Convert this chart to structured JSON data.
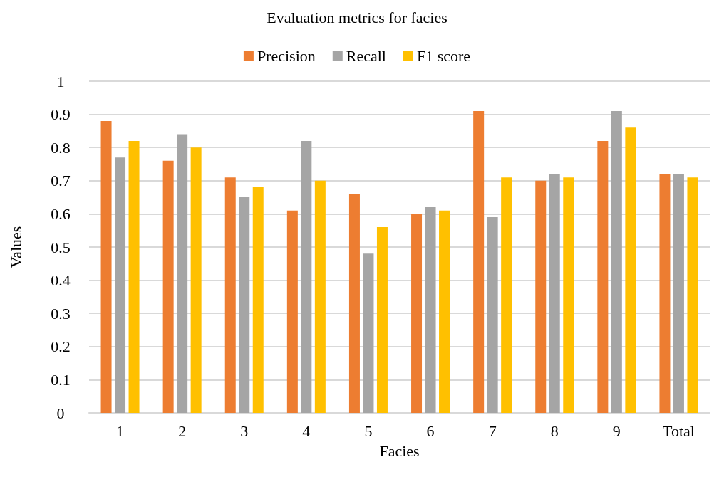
{
  "chart_data": {
    "type": "bar",
    "title": "Evaluation metrics for facies",
    "xlabel": "Facies",
    "ylabel": "Values",
    "categories": [
      "1",
      "2",
      "3",
      "4",
      "5",
      "6",
      "7",
      "8",
      "9",
      "Total"
    ],
    "series": [
      {
        "name": "Precision",
        "color": "#ed7d31",
        "values": [
          0.88,
          0.76,
          0.71,
          0.61,
          0.66,
          0.6,
          0.91,
          0.7,
          0.82,
          0.72
        ]
      },
      {
        "name": "Recall",
        "color": "#a5a5a5",
        "values": [
          0.77,
          0.84,
          0.65,
          0.82,
          0.48,
          0.62,
          0.59,
          0.72,
          0.91,
          0.72
        ]
      },
      {
        "name": "F1 score",
        "color": "#ffc000",
        "values": [
          0.82,
          0.8,
          0.68,
          0.7,
          0.56,
          0.61,
          0.71,
          0.71,
          0.86,
          0.71
        ]
      }
    ],
    "ylim": [
      0,
      1
    ],
    "yticks": [
      0,
      0.1,
      0.2,
      0.3,
      0.4,
      0.5,
      0.6,
      0.7,
      0.8,
      0.9,
      1
    ],
    "grid": "y",
    "legend": "top"
  }
}
